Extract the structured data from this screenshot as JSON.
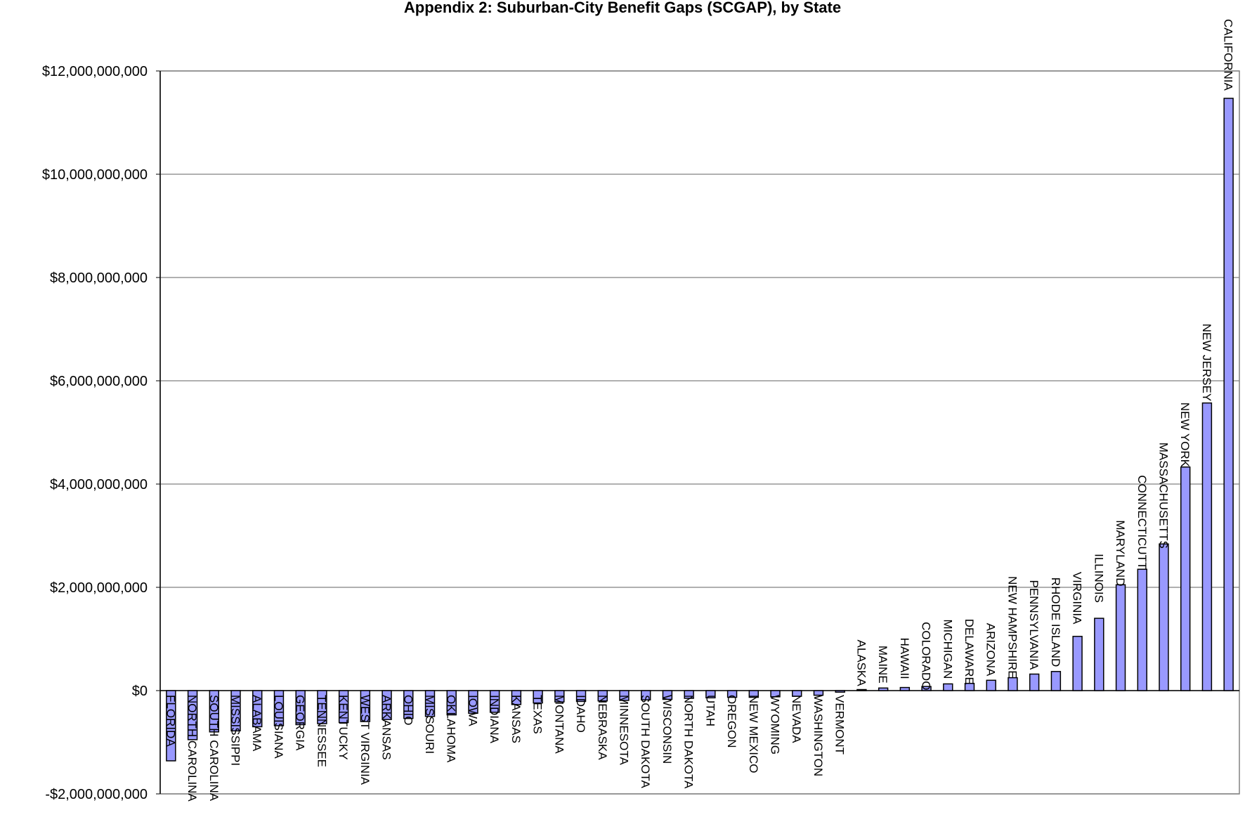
{
  "chart_data": {
    "type": "bar",
    "title": "Appendix 2:  Suburban-City Benefit Gaps (SCGAP), by State",
    "xlabel": "",
    "ylabel": "",
    "ylim": [
      -2000000000,
      12000000000
    ],
    "y_ticks": [
      -2000000000,
      0,
      2000000000,
      4000000000,
      6000000000,
      8000000000,
      10000000000,
      12000000000
    ],
    "y_tick_labels": [
      "-$2,000,000,000",
      "$0",
      "$2,000,000,000",
      "$4,000,000,000",
      "$6,000,000,000",
      "$8,000,000,000",
      "$10,000,000,000",
      "$12,000,000,000"
    ],
    "grid": true,
    "legend": "none",
    "bar_color": "#9999FF",
    "categories": [
      "FLORIDA",
      "NORTH CAROLINA",
      "SOUTH CAROLINA",
      "MISSISSIPPI",
      "ALABAMA",
      "LOUISIANA",
      "GEORGIA",
      "TENNESSEE",
      "KENTUCKY",
      "WEST VIRGINIA",
      "ARKANSAS",
      "OHIO",
      "MISSOURI",
      "OKLAHOMA",
      "IOWA",
      "INDIANA",
      "KANSAS",
      "TEXAS",
      "MONTANA",
      "IDAHO",
      "NEBRASKA",
      "MINNESOTA",
      "SOUTH DAKOTA",
      "WISCONSIN",
      "NORTH DAKOTA",
      "UTAH",
      "OREGON",
      "NEW MEXICO",
      "WYOMING",
      "NEVADA",
      "WASHINGTON",
      "VERMONT",
      "ALASKA",
      "MAINE",
      "HAWAII",
      "COLORADO",
      "MICHIGAN",
      "DELAWARE",
      "ARIZONA",
      "NEW HAMPSHIRE",
      "PENNSYLVANIA",
      "RHODE ISLAND",
      "VIRGINIA",
      "ILLINOIS",
      "MARYLAND",
      "CONNECTICUTT",
      "MASSACHUSETTS",
      "NEW YORK",
      "NEW JERSEY",
      "CALIFORNIA"
    ],
    "values": [
      -1360000000,
      -950000000,
      -800000000,
      -780000000,
      -700000000,
      -680000000,
      -660000000,
      -640000000,
      -620000000,
      -600000000,
      -560000000,
      -540000000,
      -500000000,
      -470000000,
      -440000000,
      -420000000,
      -270000000,
      -240000000,
      -220000000,
      -210000000,
      -200000000,
      -190000000,
      -180000000,
      -170000000,
      -150000000,
      -140000000,
      -130000000,
      -130000000,
      -120000000,
      -110000000,
      -90000000,
      -30000000,
      20000000,
      50000000,
      60000000,
      80000000,
      130000000,
      140000000,
      200000000,
      250000000,
      320000000,
      370000000,
      1050000000,
      1400000000,
      2050000000,
      2350000000,
      2840000000,
      4330000000,
      5570000000,
      11470000000
    ]
  }
}
